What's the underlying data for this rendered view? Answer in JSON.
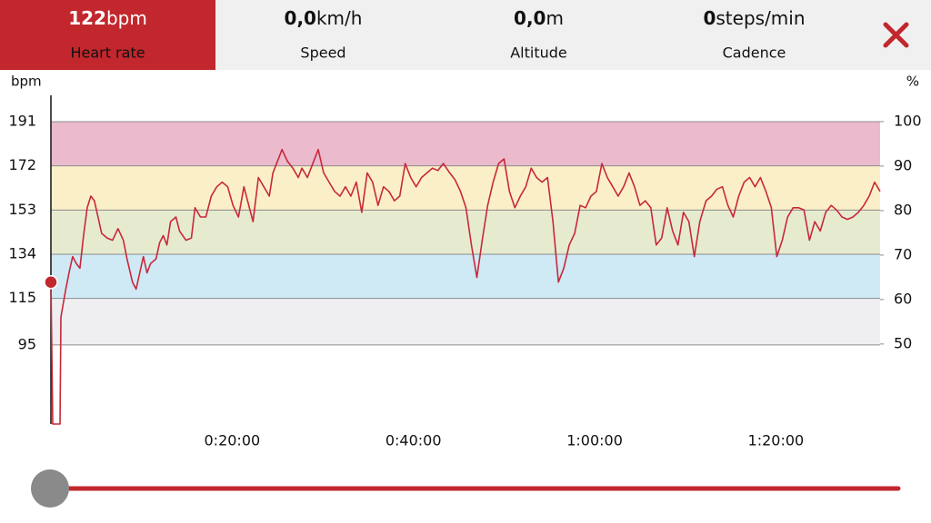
{
  "tabs": [
    {
      "value": 122,
      "unit": "bpm",
      "label": "Heart rate"
    },
    {
      "value": "0,0",
      "unit": "km/h",
      "label": "Speed"
    },
    {
      "value": "0,0",
      "unit": "m",
      "label": "Altitude"
    },
    {
      "value": "0",
      "unit": "steps/min",
      "label": "Cadence"
    }
  ],
  "chart_data": {
    "type": "line",
    "y_label": "bpm",
    "y2_label": "%",
    "xlim": [
      0,
      91.5
    ],
    "xticks": [
      {
        "value": 20,
        "label": "0:20:00"
      },
      {
        "value": 40,
        "label": "0:40:00"
      },
      {
        "value": 60,
        "label": "1:00:00"
      },
      {
        "value": 80,
        "label": "1:20:00"
      }
    ],
    "ylim": [
      61,
      191
    ],
    "yticks": [
      95,
      115,
      134,
      153,
      172,
      191
    ],
    "y2lim": [
      32,
      100
    ],
    "y2ticks": [
      50,
      60,
      70,
      80,
      90,
      100
    ],
    "zone_colors": [
      "#efeff2",
      "#cfe9f5",
      "#e6ebd0",
      "#fbefc8",
      "#ebbacd"
    ],
    "grid": true,
    "x": [
      0,
      0.2,
      1.0,
      1.1,
      1.6,
      2.0,
      2.4,
      2.8,
      3.2,
      3.6,
      4.0,
      4.4,
      4.8,
      5.2,
      5.6,
      6.2,
      6.8,
      7.4,
      8.0,
      8.4,
      9.0,
      9.4,
      9.8,
      10.2,
      10.6,
      11.0,
      11.6,
      12.0,
      12.4,
      12.8,
      13.2,
      13.8,
      14.2,
      14.9,
      15.5,
      15.9,
      16.5,
      17.1,
      17.7,
      18.3,
      18.9,
      19.5,
      20.1,
      20.7,
      21.3,
      21.9,
      22.3,
      22.9,
      23.5,
      24.1,
      24.5,
      25.1,
      25.5,
      26.1,
      26.7,
      27.3,
      27.7,
      28.3,
      28.9,
      29.5,
      30.1,
      30.7,
      31.3,
      31.9,
      32.5,
      33.1,
      33.7,
      34.3,
      34.9,
      35.5,
      36.1,
      36.7,
      37.3,
      37.9,
      38.5,
      39.1,
      39.7,
      40.3,
      40.9,
      41.5,
      42.1,
      42.7,
      43.3,
      44.0,
      44.6,
      45.2,
      45.8,
      46.4,
      47.0,
      47.6,
      48.2,
      48.8,
      49.4,
      50.0,
      50.6,
      51.2,
      51.8,
      52.4,
      53.0,
      53.6,
      54.2,
      54.8,
      55.4,
      56.0,
      56.6,
      57.2,
      57.8,
      58.4,
      59.0,
      59.6,
      60.2,
      60.8,
      61.4,
      62.0,
      62.6,
      63.2,
      63.8,
      64.4,
      65.0,
      65.6,
      66.2,
      66.8,
      67.4,
      68.0,
      68.6,
      69.2,
      69.8,
      70.4,
      71.0,
      71.6,
      72.3,
      72.9,
      73.5,
      74.1,
      74.7,
      75.3,
      75.9,
      76.5,
      77.1,
      77.7,
      78.3,
      78.9,
      79.5,
      80.1,
      80.7,
      81.3,
      81.9,
      82.5,
      83.1,
      83.7,
      84.3,
      84.9,
      85.5,
      86.1,
      86.7,
      87.3,
      87.9,
      88.5,
      89.1,
      89.7,
      90.3,
      90.9,
      91.5
    ],
    "series": [
      {
        "color": "#c8283a",
        "values": [
          123,
          61,
          61,
          107,
          118,
          126,
          133,
          130,
          128,
          142,
          154,
          159,
          157,
          150,
          143,
          141,
          140,
          145,
          140,
          132,
          122,
          119,
          126,
          133,
          126,
          130,
          132,
          139,
          142,
          138,
          148,
          150,
          144,
          140,
          141,
          154,
          150,
          150,
          159,
          163,
          165,
          163,
          155,
          150,
          163,
          154,
          148,
          167,
          163,
          159,
          169,
          175,
          179,
          174,
          171,
          167,
          171,
          167,
          173,
          179,
          169,
          165,
          161,
          159,
          163,
          159,
          165,
          152,
          169,
          165,
          155,
          163,
          161,
          157,
          159,
          173,
          167,
          163,
          167,
          169,
          171,
          170,
          173,
          169,
          166,
          161,
          154,
          138,
          124,
          140,
          155,
          165,
          173,
          175,
          161,
          154,
          159,
          163,
          171,
          167,
          165,
          167,
          148,
          122,
          128,
          138,
          143,
          155,
          154,
          159,
          161,
          173,
          167,
          163,
          159,
          163,
          169,
          163,
          155,
          157,
          154,
          138,
          141,
          154,
          144,
          138,
          152,
          148,
          133,
          148,
          157,
          159,
          162,
          163,
          155,
          150,
          159,
          165,
          167,
          163,
          167,
          161,
          154,
          133,
          140,
          150,
          154,
          154,
          153,
          140,
          148,
          144,
          152,
          155,
          153,
          150,
          149,
          150,
          152,
          155,
          159,
          165,
          161
        ]
      }
    ]
  }
}
